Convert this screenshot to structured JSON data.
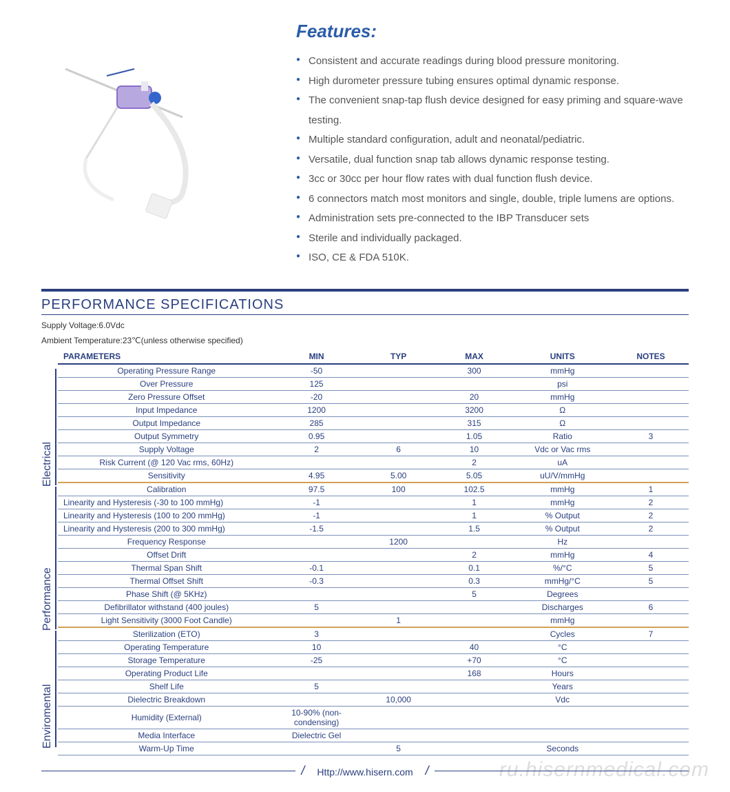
{
  "features": {
    "title": "Features:",
    "items": [
      "Consistent and accurate readings during blood pressure monitoring.",
      "High durometer pressure tubing ensures optimal dynamic response.",
      "The convenient snap-tap flush device designed for easy priming and square-wave testing.",
      "Multiple standard configuration, adult and neonatal/pediatric.",
      "Versatile, dual function snap tab allows dynamic response testing.",
      "3cc or 30cc per hour flow rates with dual function flush device.",
      "6 connectors match most monitors and single, double, triple lumens are options.",
      "Administration sets pre-connected to the IBP Transducer sets",
      "Sterile and individually packaged.",
      "ISO, CE & FDA 510K."
    ]
  },
  "spec": {
    "section_title": "PERFORMANCE SPECIFICATIONS",
    "meta1": "Supply Voltage:6.0Vdc",
    "meta2": "Ambient Temperature:23℃(unless otherwise specified)",
    "headers": [
      "PARAMETERS",
      "MIN",
      "TYP",
      "MAX",
      "UNITS",
      "NOTES"
    ],
    "col_widths": [
      "34%",
      "14%",
      "12%",
      "12%",
      "16%",
      "12%"
    ],
    "groups": [
      {
        "label": "Electrical",
        "rows": [
          {
            "p": "Operating Pressure Range",
            "min": "-50",
            "typ": "",
            "max": "300",
            "units": "mmHg",
            "notes": ""
          },
          {
            "p": "Over  Pressure",
            "min": "125",
            "typ": "",
            "max": "",
            "units": "psi",
            "notes": ""
          },
          {
            "p": "Zero Pressure Offset",
            "min": "-20",
            "typ": "",
            "max": "20",
            "units": "mmHg",
            "notes": ""
          },
          {
            "p": "Input Impedance",
            "min": "1200",
            "typ": "",
            "max": "3200",
            "units": "Ω",
            "notes": ""
          },
          {
            "p": "Output Impedance",
            "min": "285",
            "typ": "",
            "max": "315",
            "units": "Ω",
            "notes": ""
          },
          {
            "p": "Output Symmetry",
            "min": "0.95",
            "typ": "",
            "max": "1.05",
            "units": "Ratio",
            "notes": "3"
          },
          {
            "p": "Supply Voltage",
            "min": "2",
            "typ": "6",
            "max": "10",
            "units": "Vdc or Vac rms",
            "notes": ""
          },
          {
            "p": "Risk Current (@ 120 Vac rms, 60Hz)",
            "min": "",
            "typ": "",
            "max": "2",
            "units": "uA",
            "notes": ""
          },
          {
            "p": "Sensitivity",
            "min": "4.95",
            "typ": "5.00",
            "max": "5.05",
            "units": "uU/V/mmHg",
            "notes": "",
            "sep": true
          }
        ]
      },
      {
        "label": "Performance",
        "rows": [
          {
            "p": "Calibration",
            "min": "97.5",
            "typ": "100",
            "max": "102.5",
            "units": "mmHg",
            "notes": "1"
          },
          {
            "p": "Linearity and Hysteresis (-30 to 100 mmHg)",
            "min": "-1",
            "typ": "",
            "max": "1",
            "units": "mmHg",
            "notes": "2",
            "align": "left"
          },
          {
            "p": "Linearity and Hysteresis (100 to 200 mmHg)",
            "min": "-1",
            "typ": "",
            "max": "1",
            "units": "% Output",
            "notes": "2",
            "align": "left"
          },
          {
            "p": "Linearity and Hysteresis (200 to 300 mmHg)",
            "min": "-1.5",
            "typ": "",
            "max": "1.5",
            "units": "% Output",
            "notes": "2",
            "align": "left"
          },
          {
            "p": "Frequency Response",
            "min": "",
            "typ": "1200",
            "max": "",
            "units": "Hz",
            "notes": ""
          },
          {
            "p": "Offset Drift",
            "min": "",
            "typ": "",
            "max": "2",
            "units": "mmHg",
            "notes": "4"
          },
          {
            "p": "Thermal Span Shift",
            "min": "-0.1",
            "typ": "",
            "max": "0.1",
            "units": "%/°C",
            "notes": "5"
          },
          {
            "p": "Thermal Offset Shift",
            "min": "-0.3",
            "typ": "",
            "max": "0.3",
            "units": "mmHg/°C",
            "notes": "5"
          },
          {
            "p": "Phase Shift (@ 5KHz)",
            "min": "",
            "typ": "",
            "max": "5",
            "units": "Degrees",
            "notes": ""
          },
          {
            "p": "Defibrillator withstand (400 joules)",
            "min": "5",
            "typ": "",
            "max": "",
            "units": "Discharges",
            "notes": "6"
          },
          {
            "p": "Light Sensitivity (3000 Foot Candle)",
            "min": "",
            "typ": "1",
            "max": "",
            "units": "mmHg",
            "notes": "",
            "sep": true
          }
        ]
      },
      {
        "label": "Enviromental",
        "rows": [
          {
            "p": "Sterilization (ETO)",
            "min": "3",
            "typ": "",
            "max": "",
            "units": "Cycles",
            "notes": "7"
          },
          {
            "p": "Operating Temperature",
            "min": "10",
            "typ": "",
            "max": "40",
            "units": "°C",
            "notes": ""
          },
          {
            "p": "Storage Temperature",
            "min": "-25",
            "typ": "",
            "max": "+70",
            "units": "°C",
            "notes": ""
          },
          {
            "p": "Operating Product Life",
            "min": "",
            "typ": "",
            "max": "168",
            "units": "Hours",
            "notes": ""
          },
          {
            "p": "Shelf Life",
            "min": "5",
            "typ": "",
            "max": "",
            "units": "Years",
            "notes": ""
          },
          {
            "p": "Dielectric Breakdown",
            "min": "",
            "typ": "10,000",
            "max": "",
            "units": "Vdc",
            "notes": ""
          },
          {
            "p": "Humidity (External)",
            "min": "10-90% (non-condensing)",
            "typ": "",
            "max": "",
            "units": "",
            "notes": ""
          },
          {
            "p": "Media Interface",
            "min": "Dielectric Gel",
            "typ": "",
            "max": "",
            "units": "",
            "notes": ""
          },
          {
            "p": "Warm-Up Time",
            "min": "",
            "typ": "5",
            "max": "",
            "units": "Seconds",
            "notes": ""
          }
        ]
      }
    ]
  },
  "footer": {
    "url": "Http://www.hisern.com"
  },
  "watermark": "ru.hisernmedical.com",
  "colors": {
    "brand": "#2a3f7f",
    "accent": "#2a5da8",
    "sep": "#d4a055",
    "row_border": "#7a8fb8",
    "text": "#555"
  }
}
